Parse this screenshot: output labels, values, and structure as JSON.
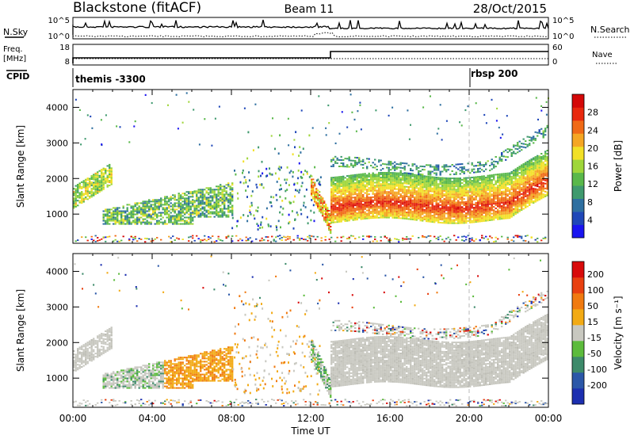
{
  "header": {
    "station": "Blackstone (fitACF)",
    "beam": "Beam 11",
    "date": "28/Oct/2015"
  },
  "panels": {
    "nsky_label": "N.Sky",
    "nsky_ticks": [
      "10^5",
      "10^0"
    ],
    "nsearch_label": "N.Search",
    "nsearch_ticks": [
      "10^5",
      "10^0"
    ],
    "freq_label_1": "Freq.",
    "freq_label_2": "[MHz]",
    "freq_ticks": [
      "18",
      "8"
    ],
    "nave_label": "Nave",
    "nave_ticks": [
      "60",
      "0"
    ],
    "cpid_label": "CPID",
    "cpid_entries": [
      "themis -3300",
      "rbsp 200"
    ]
  },
  "power_panel": {
    "ylabel": "Slant Range [km]",
    "yticks": [
      "4000",
      "3000",
      "2000",
      "1000"
    ],
    "colorbar_label": "Power [dB]",
    "colorbar_ticks": [
      "28",
      "24",
      "20",
      "16",
      "12",
      "8",
      "4"
    ],
    "colors": [
      "#1a14f0",
      "#1f47b8",
      "#2e6fa0",
      "#3f9a6e",
      "#59b84a",
      "#9fd63a",
      "#f2e026",
      "#f5a623",
      "#f06a16",
      "#e8280e",
      "#d40808"
    ]
  },
  "velocity_panel": {
    "ylabel": "Slant Range [km]",
    "yticks": [
      "4000",
      "3000",
      "2000",
      "1000"
    ],
    "colorbar_label": "Velocity [m s⁻¹]",
    "colorbar_ticks": [
      "200",
      "100",
      "50",
      "15",
      "-15",
      "-50",
      "-100",
      "-200"
    ],
    "colors": [
      "#1c2fb0",
      "#2b57a8",
      "#3d8a6a",
      "#5cbb3c",
      "#c8c8c0",
      "#f2aa14",
      "#f07a10",
      "#e84010",
      "#d80a0a"
    ]
  },
  "xaxis": {
    "label": "Time UT",
    "ticks": [
      "00:00",
      "04:00",
      "08:00",
      "12:00",
      "16:00",
      "20:00",
      "00:00"
    ]
  },
  "chart_data": {
    "type": "heatmap",
    "title": "Blackstone (fitACF) Beam 11 28/Oct/2015",
    "xlabel": "Time UT",
    "ylabel": "Slant Range [km]",
    "x_range": [
      "00:00",
      "24:00"
    ],
    "ylim": [
      180,
      4500
    ],
    "freq_mhz_range": [
      8,
      18
    ],
    "cpid": [
      {
        "start": "00:00",
        "name": "themis -3300"
      },
      {
        "start": "20:00",
        "name": "rbsp 200"
      }
    ],
    "power_scale_db": [
      0,
      30
    ],
    "velocity_scale_ms": [
      -200,
      200
    ],
    "dominant_power_band": [
      {
        "time_h": 0.0,
        "range_km": 1600,
        "power_db": 14
      },
      {
        "time_h": 1.0,
        "range_km": 2200,
        "power_db": 12
      },
      {
        "time_h": 3.0,
        "range_km": 900,
        "power_db": 12
      },
      {
        "time_h": 6.5,
        "range_km": 1500,
        "power_db": 16
      },
      {
        "time_h": 12.5,
        "range_km": 900,
        "power_db": 24
      },
      {
        "time_h": 14.0,
        "range_km": 1200,
        "power_db": 26
      },
      {
        "time_h": 18.0,
        "range_km": 1300,
        "power_db": 26
      },
      {
        "time_h": 22.5,
        "range_km": 1500,
        "power_db": 24
      },
      {
        "time_h": 24.0,
        "range_km": 2100,
        "power_db": 16
      }
    ]
  }
}
